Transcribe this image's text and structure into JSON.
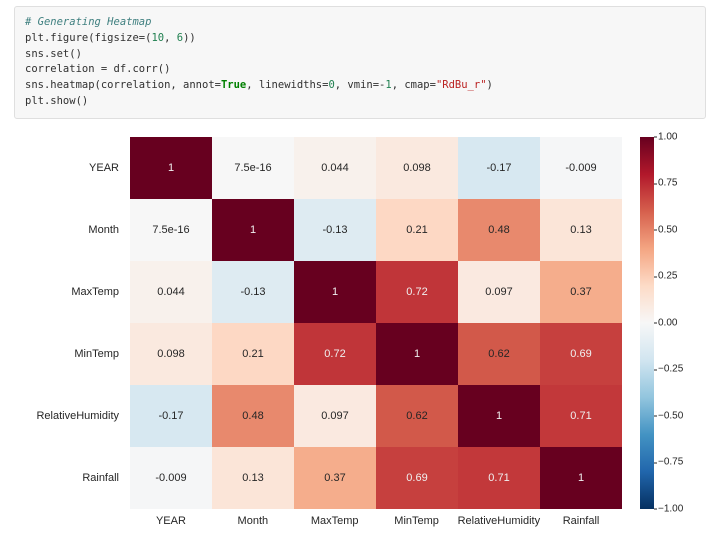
{
  "code": {
    "comment": "# Generating Heatmap",
    "lines": [
      "plt.figure(figsize=(10, 6))",
      "sns.set()",
      "correlation = df.corr()",
      "sns.heatmap(correlation, annot=True, linewidths=0, vmin=-1, cmap=\"RdBu_r\")",
      "plt.show()"
    ]
  },
  "heatmap": {
    "type": "heatmap",
    "labels": [
      "YEAR",
      "Month",
      "MaxTemp",
      "MinTemp",
      "RelativeHumidity",
      "Rainfall"
    ],
    "matrix": [
      [
        1,
        7.5e-16,
        0.044,
        0.098,
        -0.17,
        -0.009
      ],
      [
        7.5e-16,
        1,
        -0.13,
        0.21,
        0.48,
        0.13
      ],
      [
        0.044,
        -0.13,
        1,
        0.72,
        0.097,
        0.37
      ],
      [
        0.098,
        0.21,
        0.72,
        1,
        0.62,
        0.69
      ],
      [
        -0.17,
        0.48,
        0.097,
        0.62,
        1,
        0.71
      ],
      [
        -0.009,
        0.13,
        0.37,
        0.69,
        0.71,
        1
      ]
    ],
    "display": [
      [
        "1",
        "7.5e-16",
        "0.044",
        "0.098",
        "-0.17",
        "-0.009"
      ],
      [
        "7.5e-16",
        "1",
        "-0.13",
        "0.21",
        "0.48",
        "0.13"
      ],
      [
        "0.044",
        "-0.13",
        "1",
        "0.72",
        "0.097",
        "0.37"
      ],
      [
        "0.098",
        "0.21",
        "0.72",
        "1",
        "0.62",
        "0.69"
      ],
      [
        "-0.17",
        "0.48",
        "0.097",
        "0.62",
        "1",
        "0.71"
      ],
      [
        "-0.009",
        "0.13",
        "0.37",
        "0.69",
        "0.71",
        "1"
      ]
    ],
    "vmin": -1.0,
    "vmax": 1.0,
    "cmap": "RdBu_r",
    "cmap_stops": [
      {
        "t": 0.0,
        "c": "#053061"
      },
      {
        "t": 0.1,
        "c": "#2166ac"
      },
      {
        "t": 0.2,
        "c": "#4393c3"
      },
      {
        "t": 0.3,
        "c": "#92c5de"
      },
      {
        "t": 0.4,
        "c": "#d1e5f0"
      },
      {
        "t": 0.5,
        "c": "#f7f7f7"
      },
      {
        "t": 0.6,
        "c": "#fddbc7"
      },
      {
        "t": 0.7,
        "c": "#f4a582"
      },
      {
        "t": 0.8,
        "c": "#d6604d"
      },
      {
        "t": 0.9,
        "c": "#b2182b"
      },
      {
        "t": 1.0,
        "c": "#67001f"
      }
    ],
    "cell_text_light": "#f0f0f0",
    "cell_text_dark": "#262626",
    "annot_fontsize": 11,
    "axis_label_fontsize": 11,
    "background_color": "#ffffff",
    "colorbar": {
      "ticks": [
        1.0,
        0.75,
        0.5,
        0.25,
        0.0,
        -0.25,
        -0.5,
        -0.75,
        -1.0
      ],
      "tick_labels": [
        "1.00",
        "0.75",
        "0.50",
        "0.25",
        "0.00",
        "−0.25",
        "−0.50",
        "−0.75",
        "−1.00"
      ],
      "tick_fontsize": 10
    }
  }
}
